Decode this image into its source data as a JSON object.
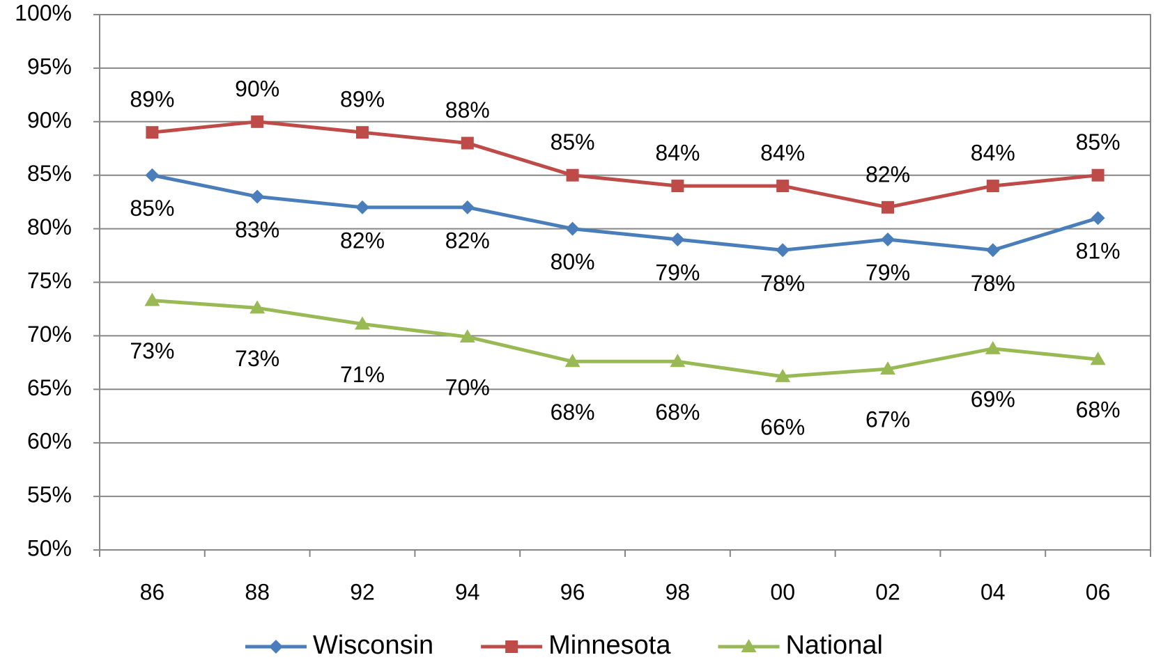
{
  "chart_data": {
    "type": "line",
    "categories": [
      "86",
      "88",
      "92",
      "94",
      "96",
      "98",
      "00",
      "02",
      "04",
      "06"
    ],
    "series": [
      {
        "name": "Wisconsin",
        "color": "#4a7ebb",
        "marker": "diamond",
        "values": [
          85,
          83,
          82,
          82,
          80,
          79,
          78,
          79,
          78,
          81
        ],
        "value_labels": [
          "85%",
          "83%",
          "82%",
          "82%",
          "80%",
          "79%",
          "78%",
          "79%",
          "78%",
          "81%"
        ]
      },
      {
        "name": "Minnesota",
        "color": "#be4b48",
        "marker": "square",
        "values": [
          89,
          90,
          89,
          88,
          85,
          84,
          84,
          82,
          84,
          85
        ],
        "value_labels": [
          "89%",
          "90%",
          "89%",
          "88%",
          "85%",
          "84%",
          "84%",
          "82%",
          "84%",
          "85%"
        ]
      },
      {
        "name": "National",
        "color": "#98b954",
        "marker": "triangle",
        "values": [
          73.3,
          72.6,
          71.1,
          69.9,
          67.6,
          67.6,
          66.2,
          66.9,
          68.8,
          67.8
        ],
        "value_labels": [
          "73%",
          "73%",
          "71%",
          "70%",
          "68%",
          "68%",
          "66%",
          "67%",
          "69%",
          "68%"
        ]
      }
    ],
    "ylim": [
      50,
      100
    ],
    "yticks": [
      {
        "value": 50,
        "label": "50%"
      },
      {
        "value": 55,
        "label": "55%"
      },
      {
        "value": 60,
        "label": "60%"
      },
      {
        "value": 65,
        "label": "65%"
      },
      {
        "value": 70,
        "label": "70%"
      },
      {
        "value": 75,
        "label": "75%"
      },
      {
        "value": 80,
        "label": "80%"
      },
      {
        "value": 85,
        "label": "85%"
      },
      {
        "value": 90,
        "label": "90%"
      },
      {
        "value": 95,
        "label": "95%"
      },
      {
        "value": 100,
        "label": "100%"
      }
    ],
    "grid": true,
    "legend": "bottom"
  }
}
